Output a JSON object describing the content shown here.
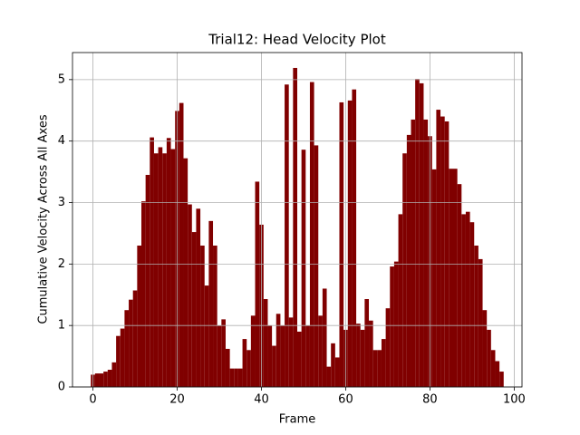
{
  "chart_data": {
    "type": "bar",
    "title": "Trial12: Head Velocity Plot",
    "x_label": "Frame",
    "y_label": "Cumulative Velocity Across All Axes",
    "x": [
      0,
      1,
      2,
      3,
      4,
      5,
      6,
      7,
      8,
      9,
      10,
      11,
      12,
      13,
      14,
      15,
      16,
      17,
      18,
      19,
      20,
      21,
      22,
      23,
      24,
      25,
      26,
      27,
      28,
      29,
      30,
      31,
      32,
      33,
      34,
      35,
      36,
      37,
      38,
      39,
      40,
      41,
      42,
      43,
      44,
      45,
      46,
      47,
      48,
      49,
      50,
      51,
      52,
      53,
      54,
      55,
      56,
      57,
      58,
      59,
      60,
      61,
      62,
      63,
      64,
      65,
      66,
      67,
      68,
      69,
      70,
      71,
      72,
      73,
      74,
      75,
      76,
      77,
      78,
      79,
      80,
      81,
      82,
      83,
      84,
      85,
      86,
      87,
      88,
      89,
      90,
      91,
      92,
      93,
      94,
      95,
      96,
      97
    ],
    "values": [
      0.2,
      0.22,
      0.22,
      0.25,
      0.28,
      0.4,
      0.83,
      0.95,
      1.25,
      1.42,
      1.57,
      2.3,
      3.02,
      3.45,
      4.06,
      3.8,
      3.9,
      3.8,
      4.05,
      3.87,
      4.49,
      4.62,
      3.72,
      2.97,
      2.52,
      2.9,
      2.3,
      1.65,
      2.7,
      2.3,
      1.0,
      1.1,
      0.62,
      0.3,
      0.3,
      0.3,
      0.78,
      0.6,
      1.16,
      3.34,
      2.64,
      1.43,
      1.0,
      0.67,
      1.19,
      1.0,
      4.92,
      1.13,
      5.19,
      0.9,
      3.86,
      1.0,
      4.96,
      3.93,
      1.16,
      1.6,
      0.33,
      0.71,
      0.48,
      4.63,
      0.93,
      4.66,
      4.84,
      1.03,
      0.93,
      1.43,
      1.08,
      0.6,
      0.6,
      0.78,
      1.28,
      1.96,
      2.04,
      2.81,
      3.8,
      4.1,
      4.35,
      5.01,
      4.94,
      4.35,
      4.08,
      3.54,
      4.51,
      4.4,
      4.32,
      3.55,
      3.55,
      3.3,
      2.81,
      2.85,
      2.68,
      2.3,
      2.08,
      1.25,
      0.93,
      0.6,
      0.42,
      0.25
    ],
    "color": "#800000",
    "bar_width": 1,
    "xlim": [
      -4.85,
      101.85
    ],
    "xticks": [
      0,
      20,
      40,
      60,
      80,
      100
    ],
    "ylim": [
      0,
      5.44
    ],
    "yticks": [
      0,
      1,
      2,
      3,
      4,
      5
    ],
    "grid": true
  }
}
